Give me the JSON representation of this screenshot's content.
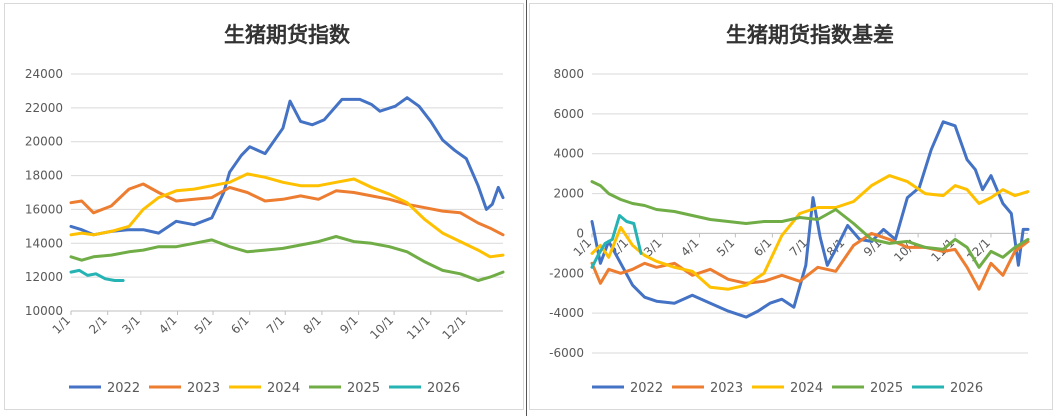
{
  "colors": {
    "2022": "#4472C4",
    "2023": "#ED7D31",
    "2024": "#FFC000",
    "2025": "#70AD47",
    "2026": "#26B3B3",
    "grid": "#d9d9d9",
    "text": "#595959"
  },
  "chart_data": [
    {
      "type": "line",
      "title": "生猪期货指数",
      "xlabel": "",
      "ylabel": "",
      "x_tick_labels": [
        "1/1",
        "2/1",
        "3/1",
        "4/1",
        "5/1",
        "6/1",
        "7/1",
        "8/1",
        "9/1",
        "10/1",
        "11/1",
        "12/1"
      ],
      "y_ticks": [
        10000,
        12000,
        14000,
        16000,
        18000,
        20000,
        22000,
        24000
      ],
      "ylim": [
        10000,
        24000
      ],
      "xlim": [
        1,
        366
      ],
      "grid": true,
      "legend_position": "bottom",
      "series": [
        {
          "name": "2022",
          "x": [
            1,
            10,
            20,
            35,
            50,
            62,
            75,
            90,
            105,
            120,
            130,
            135,
            145,
            152,
            165,
            180,
            186,
            195,
            205,
            215,
            230,
            245,
            255,
            262,
            275,
            285,
            295,
            305,
            315,
            325,
            335,
            345,
            352,
            357,
            362,
            366
          ],
          "values": [
            15000,
            14800,
            14500,
            14700,
            14800,
            14800,
            14600,
            15300,
            15100,
            15500,
            17000,
            18200,
            19200,
            19700,
            19300,
            20800,
            22400,
            21200,
            21000,
            21300,
            22500,
            22500,
            22200,
            21800,
            22100,
            22600,
            22100,
            21200,
            20100,
            19500,
            19000,
            17400,
            16000,
            16300,
            17300,
            16700
          ]
        },
        {
          "name": "2023",
          "x": [
            1,
            10,
            20,
            35,
            50,
            62,
            75,
            90,
            105,
            120,
            135,
            150,
            165,
            180,
            195,
            210,
            225,
            240,
            255,
            270,
            285,
            300,
            315,
            330,
            345,
            355,
            366
          ],
          "values": [
            16400,
            16500,
            15800,
            16200,
            17200,
            17500,
            17000,
            16500,
            16600,
            16700,
            17300,
            17000,
            16500,
            16600,
            16800,
            16600,
            17100,
            17000,
            16800,
            16600,
            16300,
            16100,
            15900,
            15800,
            15200,
            14900,
            14500
          ]
        },
        {
          "name": "2024",
          "x": [
            1,
            10,
            20,
            35,
            50,
            62,
            75,
            90,
            105,
            120,
            135,
            150,
            165,
            180,
            195,
            210,
            225,
            240,
            255,
            270,
            285,
            300,
            315,
            330,
            345,
            355,
            366
          ],
          "values": [
            14500,
            14600,
            14500,
            14700,
            15000,
            16000,
            16700,
            17100,
            17200,
            17400,
            17600,
            18100,
            17900,
            17600,
            17400,
            17400,
            17600,
            17800,
            17300,
            16900,
            16400,
            15400,
            14600,
            14100,
            13600,
            13200,
            13300
          ]
        },
        {
          "name": "2025",
          "x": [
            1,
            10,
            20,
            35,
            50,
            62,
            75,
            90,
            105,
            120,
            135,
            150,
            165,
            180,
            195,
            210,
            225,
            240,
            255,
            270,
            285,
            300,
            315,
            330,
            345,
            355,
            366
          ],
          "values": [
            13200,
            13000,
            13200,
            13300,
            13500,
            13600,
            13800,
            13800,
            14000,
            14200,
            13800,
            13500,
            13600,
            13700,
            13900,
            14100,
            14400,
            14100,
            14000,
            13800,
            13500,
            12900,
            12400,
            12200,
            11800,
            12000,
            12300
          ]
        },
        {
          "name": "2026",
          "x": [
            1,
            8,
            15,
            22,
            30,
            38,
            45
          ],
          "values": [
            12300,
            12400,
            12100,
            12200,
            11900,
            11800,
            11800
          ]
        }
      ]
    },
    {
      "type": "line",
      "title": "生猪期货指数基差",
      "xlabel": "",
      "ylabel": "",
      "x_tick_labels": [
        "1/1",
        "2/1",
        "3/1",
        "4/1",
        "5/1",
        "6/1",
        "7/1",
        "8/1",
        "9/1",
        "10/1",
        "11/1",
        "12/1"
      ],
      "y_ticks": [
        -6000,
        -4000,
        -2000,
        0,
        2000,
        4000,
        6000,
        8000
      ],
      "ylim": [
        -6000,
        8000
      ],
      "xlim": [
        1,
        366
      ],
      "grid": true,
      "legend_position": "bottom",
      "series": [
        {
          "name": "2022",
          "x": [
            1,
            8,
            15,
            25,
            35,
            45,
            55,
            70,
            85,
            100,
            115,
            130,
            140,
            150,
            160,
            170,
            180,
            186,
            192,
            198,
            205,
            215,
            225,
            235,
            245,
            255,
            265,
            275,
            285,
            295,
            305,
            315,
            322,
            328,
            335,
            345,
            352,
            358,
            362,
            366
          ],
          "values": [
            600,
            -1500,
            -400,
            -1500,
            -2600,
            -3200,
            -3400,
            -3500,
            -3100,
            -3500,
            -3900,
            -4200,
            -3900,
            -3500,
            -3300,
            -3700,
            -1600,
            1800,
            -200,
            -1600,
            -800,
            400,
            -300,
            -400,
            200,
            -300,
            1800,
            2300,
            4200,
            5600,
            5400,
            3700,
            3200,
            2200,
            2900,
            1500,
            1000,
            -1600,
            200,
            200
          ]
        },
        {
          "name": "2023",
          "x": [
            1,
            8,
            15,
            25,
            35,
            45,
            55,
            70,
            85,
            100,
            115,
            130,
            145,
            160,
            175,
            190,
            205,
            220,
            235,
            250,
            265,
            280,
            295,
            305,
            315,
            325,
            335,
            345,
            355,
            366
          ],
          "values": [
            -1500,
            -2500,
            -1800,
            -2000,
            -1800,
            -1500,
            -1700,
            -1500,
            -2100,
            -1800,
            -2300,
            -2500,
            -2400,
            -2100,
            -2400,
            -1700,
            -1900,
            -600,
            0,
            -300,
            -700,
            -700,
            -900,
            -800,
            -1700,
            -2800,
            -1500,
            -2100,
            -900,
            -400
          ]
        },
        {
          "name": "2024",
          "x": [
            1,
            8,
            15,
            25,
            35,
            45,
            55,
            70,
            85,
            100,
            115,
            130,
            145,
            160,
            175,
            190,
            205,
            220,
            235,
            250,
            265,
            280,
            295,
            305,
            315,
            325,
            335,
            345,
            355,
            366
          ],
          "values": [
            -1000,
            -600,
            -1200,
            300,
            -600,
            -1100,
            -1400,
            -1700,
            -1900,
            -2700,
            -2800,
            -2600,
            -2000,
            -100,
            1000,
            1300,
            1300,
            1600,
            2400,
            2900,
            2600,
            2000,
            1900,
            2400,
            2200,
            1500,
            1800,
            2200,
            1900,
            2100
          ]
        },
        {
          "name": "2025",
          "x": [
            1,
            8,
            15,
            25,
            35,
            45,
            55,
            70,
            85,
            100,
            115,
            130,
            145,
            160,
            175,
            190,
            205,
            220,
            235,
            250,
            265,
            280,
            295,
            305,
            315,
            325,
            335,
            345,
            355,
            366
          ],
          "values": [
            2600,
            2400,
            2000,
            1700,
            1500,
            1400,
            1200,
            1100,
            900,
            700,
            600,
            500,
            600,
            600,
            800,
            700,
            1200,
            500,
            -300,
            -500,
            -400,
            -700,
            -800,
            -300,
            -700,
            -1700,
            -900,
            -1200,
            -700,
            -300
          ]
        },
        {
          "name": "2026",
          "x": [
            1,
            6,
            12,
            18,
            24,
            30,
            36,
            42
          ],
          "values": [
            -1700,
            -1100,
            -500,
            -300,
            900,
            600,
            500,
            -1000
          ]
        }
      ]
    }
  ]
}
